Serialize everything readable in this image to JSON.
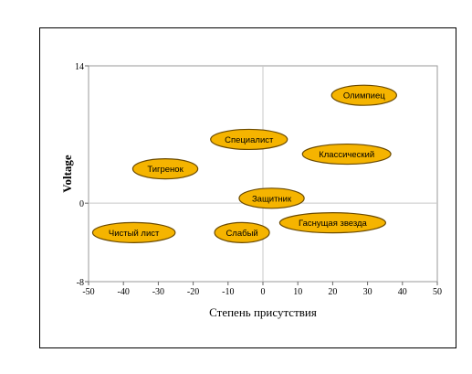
{
  "chart_data": {
    "type": "scatter",
    "title": "",
    "xlabel": "Степень присутствия",
    "ylabel": "Voltage",
    "xlim": [
      -50,
      50
    ],
    "ylim": [
      -8,
      14
    ],
    "xticks": [
      -50,
      -40,
      -30,
      -20,
      -10,
      0,
      10,
      20,
      30,
      40,
      50
    ],
    "yticks": [
      -8,
      0,
      14
    ],
    "grid": false,
    "reference_lines": {
      "x": 0,
      "y": 0
    },
    "marker_color": "#F5B400",
    "marker_edge_color": "#6B4A00",
    "points": [
      {
        "label": "Олимпиец",
        "x": 29,
        "y": 11
      },
      {
        "label": "Специалист",
        "x": -4,
        "y": 6.5
      },
      {
        "label": "Классический",
        "x": 24,
        "y": 5
      },
      {
        "label": "Тигренок",
        "x": -28,
        "y": 3.5
      },
      {
        "label": "Защитник",
        "x": 2.5,
        "y": 0.5
      },
      {
        "label": "Чистый лист",
        "x": -37,
        "y": -3
      },
      {
        "label": "Слабый",
        "x": -6,
        "y": -3
      },
      {
        "label": "Гаснущая звезда",
        "x": 20,
        "y": -2
      }
    ]
  }
}
